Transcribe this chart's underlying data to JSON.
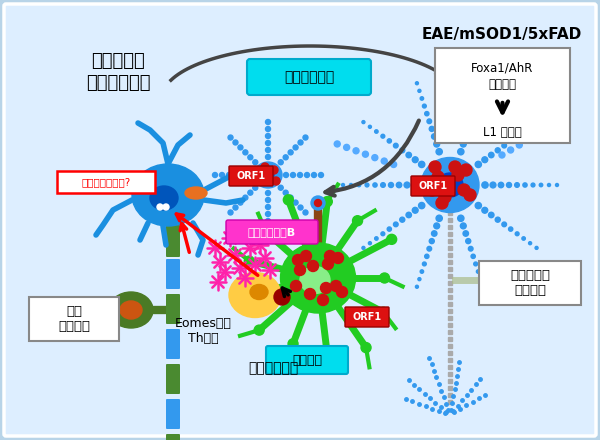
{
  "bg_color": "#b8d4e8",
  "inner_bg_color": "#ddeeff",
  "title_left": "免疫依存性\n神経細胞障害",
  "title_right": "EAE/mSOD1/5xFAD",
  "cyan_box_text": "神経細胞障害",
  "label_healthy": "健常\n神経細胞",
  "label_damaged": "障害された\n神経細胞",
  "label_microglia": "ミクログリア",
  "label_eomes": "Eomes陽性\nTh細胞",
  "label_granzyme": "グランザイムB",
  "label_mitochondria": "ミトコンドリア?",
  "label_orf1_a": "ORF1",
  "label_orf1_b": "ORF1",
  "label_orf1_c": "ORF1",
  "label_antigen": "抗原提示",
  "foxa_line1": "Foxa1/AhR",
  "foxa_line2": "細胞周期",
  "foxa_line3": "L1 脱抑制"
}
